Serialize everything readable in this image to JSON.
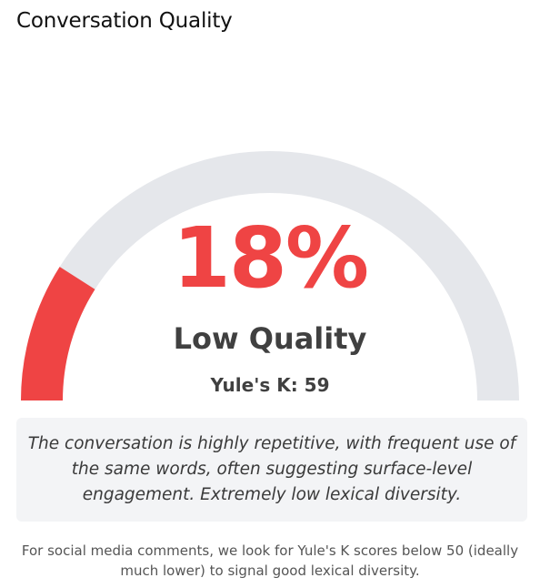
{
  "header": {
    "title": "Conversation Quality"
  },
  "gauge": {
    "percent_value": 18,
    "percent_label": "18%",
    "quality_label": "Low Quality",
    "metric_label": "Yule's K: 59",
    "fill_color": "#ef4444",
    "track_color": "#e5e7eb",
    "text_color": "#ef4444"
  },
  "description": {
    "text": "The conversation is highly repetitive, with frequent use of the same words, often suggesting surface-level engagement. Extremely low lexical diversity."
  },
  "footnote": {
    "text": "For social media comments, we look for Yule's K scores below 50 (ideally much lower) to signal good lexical diversity."
  }
}
